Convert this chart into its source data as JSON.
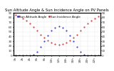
{
  "title": "Sun Altitude Angle & Sun Incidence Angle on PV Panels",
  "blue_label": "Sun Altitude Angle",
  "red_label": "Sun Incidence Angle",
  "x": [
    0,
    1,
    2,
    3,
    4,
    5,
    6,
    7,
    8,
    9,
    10,
    11,
    12,
    13,
    14,
    15,
    16,
    17,
    18,
    19,
    20,
    21,
    22,
    23
  ],
  "blue_y": [
    0,
    0,
    0,
    0,
    0,
    2,
    8,
    18,
    30,
    42,
    52,
    59,
    62,
    59,
    52,
    42,
    30,
    18,
    8,
    2,
    0,
    0,
    0,
    0
  ],
  "red_y": [
    85,
    82,
    78,
    73,
    67,
    60,
    52,
    44,
    37,
    31,
    27,
    24,
    23,
    24,
    27,
    31,
    37,
    44,
    52,
    60,
    67,
    73,
    78,
    82
  ],
  "ylim": [
    0,
    90
  ],
  "xlim": [
    -0.5,
    23.5
  ],
  "bg_color": "#ffffff",
  "blue_color": "#2222cc",
  "red_color": "#cc2222",
  "grid_color": "#bbbbbb",
  "title_fontsize": 3.8,
  "tick_fontsize": 3.0,
  "legend_fontsize": 3.0,
  "yticks": [
    0,
    10,
    20,
    30,
    40,
    50,
    60,
    70,
    80,
    90
  ],
  "ytick_labels": [
    "0",
    "10",
    "20",
    "30",
    "40",
    "50",
    "60",
    "70",
    "80",
    "90"
  ],
  "xtick_positions": [
    0,
    2,
    4,
    6,
    8,
    10,
    12,
    14,
    16,
    18,
    20,
    22
  ],
  "xtick_labels": [
    "0h",
    "2h",
    "4h",
    "6h",
    "8h",
    "10h",
    "12h",
    "14h",
    "16h",
    "18h",
    "20h",
    "22h"
  ]
}
